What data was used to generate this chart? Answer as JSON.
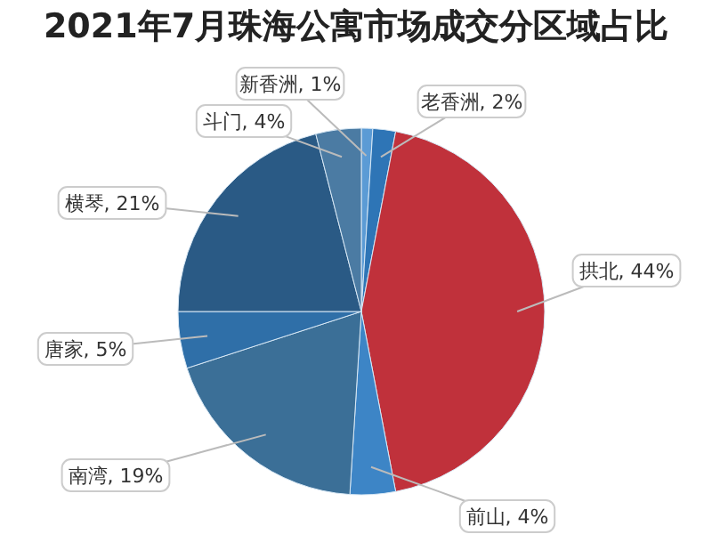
{
  "chart_data": {
    "type": "pie",
    "title": "2021年7月珠海公寓市场成交分区域占比",
    "categories": [
      "新香洲",
      "老香洲",
      "拱北",
      "前山",
      "南湾",
      "唐家",
      "横琴",
      "斗门"
    ],
    "values": [
      1,
      2,
      44,
      4,
      19,
      5,
      21,
      4
    ],
    "value_labels": [
      "1%",
      "2%",
      "44%",
      "4%",
      "19%",
      "5%",
      "21%",
      "4%"
    ],
    "colors": [
      "#5b9bd5",
      "#2e75b6",
      "#c0313b",
      "#3d85c6",
      "#3b6f97",
      "#2f6fa8",
      "#2a5a85",
      "#4b7ba3"
    ]
  }
}
